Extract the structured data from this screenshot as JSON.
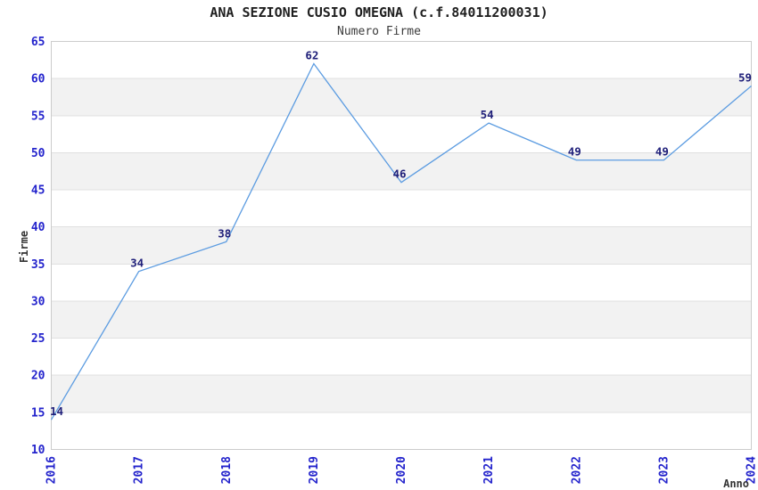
{
  "chart_data": {
    "type": "line",
    "title": "ANA SEZIONE CUSIO OMEGNA (c.f.84011200031)",
    "subtitle": "Numero Firme",
    "xlabel": "Anno",
    "ylabel": "Firme",
    "categories": [
      "2016",
      "2017",
      "2018",
      "2019",
      "2020",
      "2021",
      "2022",
      "2023",
      "2024"
    ],
    "values": [
      14,
      34,
      38,
      62,
      46,
      54,
      49,
      49,
      59
    ],
    "ylim": [
      10,
      65
    ],
    "ytick_step": 5,
    "grid": "horizontal-lines-with-alternating-bands",
    "legend": "none",
    "colors": {
      "line": "#5c9ce1",
      "tick_label": "#2323cc",
      "point_label": "#20207a",
      "band_gray": "#f2f2f2",
      "gridline": "#e0e0e0",
      "plot_border": "#cccccc",
      "title": "#1f1f1f",
      "subtitle": "#3c3c3c",
      "axis_name": "#333333",
      "background": "#ffffff"
    }
  }
}
